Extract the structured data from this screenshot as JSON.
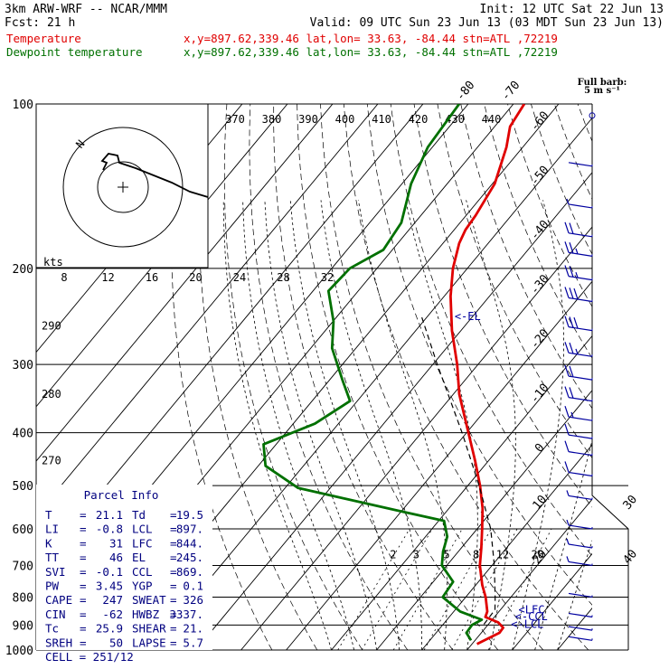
{
  "header": {
    "line1_left": "3km ARW-WRF -- NCAR/MMM",
    "line1_right": "Init: 12 UTC Sat 22 Jun 13",
    "line2_left": "Fcst:   21 h",
    "line2_right": "Valid: 09 UTC Sun 23 Jun 13 (03 MDT Sun 23 Jun 13)",
    "temp_label": "Temperature",
    "temp_info": "x,y=897.62,339.46   lat,lon= 33.63, -84.44   stn=ATL ,72219",
    "dew_label": "Dewpoint temperature",
    "dew_info": "x,y=897.62,339.46   lat,lon= 33.63, -84.44   stn=ATL ,72219"
  },
  "barb_legend": {
    "title": "Full barb:",
    "unit": "5 m s⁻¹"
  },
  "colors": {
    "temperature": "#e00000",
    "dewpoint": "#007000",
    "parcel": "#000080",
    "grid": "#000000"
  },
  "chart_data": {
    "type": "line",
    "pressure_levels": [
      {
        "p": 100,
        "label": "100"
      },
      {
        "p": 200,
        "label": "200"
      },
      {
        "p": 300,
        "label": "300"
      },
      {
        "p": 400,
        "label": "400"
      },
      {
        "p": 500,
        "label": "500"
      },
      {
        "p": 600,
        "label": "600"
      },
      {
        "p": 700,
        "label": "700"
      },
      {
        "p": 800,
        "label": "800"
      },
      {
        "p": 900,
        "label": "900"
      },
      {
        "p": 1000,
        "label": "1000"
      }
    ],
    "temp_isotherm_labels": [
      {
        "t": -80,
        "label": "-80"
      },
      {
        "t": -70,
        "label": "-70"
      },
      {
        "t": -60,
        "label": "-60"
      },
      {
        "t": -50,
        "label": "-50"
      },
      {
        "t": -40,
        "label": "-40"
      },
      {
        "t": -30,
        "label": "-30"
      },
      {
        "t": -20,
        "label": "-20"
      },
      {
        "t": -10,
        "label": "-10"
      },
      {
        "t": 0,
        "label": "0"
      },
      {
        "t": 10,
        "label": "10"
      },
      {
        "t": 20,
        "label": "20"
      },
      {
        "t": 30,
        "label": "30"
      },
      {
        "t": 40,
        "label": "40"
      }
    ],
    "theta_e_labels": [
      "370",
      "380",
      "390",
      "400",
      "410",
      "420",
      "430",
      "440"
    ],
    "theta_labels": [
      {
        "v": "290",
        "p": 255
      },
      {
        "v": "280",
        "p": 340
      },
      {
        "v": "270",
        "p": 450
      }
    ],
    "mixing_ratio_labels": [
      "2",
      "3",
      "5",
      "8",
      "12",
      "20"
    ],
    "hodograph": {
      "units": "kts",
      "ring_labels": [
        "8",
        "12",
        "16",
        "20",
        "24",
        "28",
        "32"
      ],
      "north_label": "N"
    },
    "series": [
      {
        "name": "Temperature",
        "points": [
          {
            "p": 100,
            "t": -67.6
          },
          {
            "p": 110,
            "t": -66.6
          },
          {
            "p": 120,
            "t": -63.6
          },
          {
            "p": 140,
            "t": -59.5
          },
          {
            "p": 160,
            "t": -57.9
          },
          {
            "p": 170,
            "t": -57.5
          },
          {
            "p": 180,
            "t": -56.4
          },
          {
            "p": 200,
            "t": -53.2
          },
          {
            "p": 225,
            "t": -48.6
          },
          {
            "p": 260,
            "t": -42.0
          },
          {
            "p": 300,
            "t": -34.6
          },
          {
            "p": 340,
            "t": -28.7
          },
          {
            "p": 400,
            "t": -19.6
          },
          {
            "p": 450,
            "t": -13.0
          },
          {
            "p": 500,
            "t": -7.3
          },
          {
            "p": 550,
            "t": -2.6
          },
          {
            "p": 600,
            "t": 1.1
          },
          {
            "p": 650,
            "t": 4.4
          },
          {
            "p": 700,
            "t": 7.3
          },
          {
            "p": 760,
            "t": 11.4
          },
          {
            "p": 800,
            "t": 14.4
          },
          {
            "p": 850,
            "t": 17.4
          },
          {
            "p": 870,
            "t": 18.0
          },
          {
            "p": 890,
            "t": 21.8
          },
          {
            "p": 910,
            "t": 23.9
          },
          {
            "p": 930,
            "t": 24.0
          },
          {
            "p": 955,
            "t": 22.4
          },
          {
            "p": 975,
            "t": 21.1
          }
        ]
      },
      {
        "name": "Dewpoint temperature",
        "points": [
          {
            "p": 100,
            "t": -82.0
          },
          {
            "p": 120,
            "t": -81.0
          },
          {
            "p": 140,
            "t": -78.0
          },
          {
            "p": 165,
            "t": -73.0
          },
          {
            "p": 185,
            "t": -72.0
          },
          {
            "p": 200,
            "t": -76.0
          },
          {
            "p": 220,
            "t": -76.6
          },
          {
            "p": 250,
            "t": -69.9
          },
          {
            "p": 280,
            "t": -65.3
          },
          {
            "p": 320,
            "t": -57.2
          },
          {
            "p": 350,
            "t": -51.6
          },
          {
            "p": 385,
            "t": -55.2
          },
          {
            "p": 420,
            "t": -62.8
          },
          {
            "p": 460,
            "t": -58.4
          },
          {
            "p": 505,
            "t": -47.1
          },
          {
            "p": 560,
            "t": -18.7
          },
          {
            "p": 580,
            "t": -8.8
          },
          {
            "p": 620,
            "t": -5.2
          },
          {
            "p": 660,
            "t": -3.4
          },
          {
            "p": 700,
            "t": -1.1
          },
          {
            "p": 750,
            "t": 4.4
          },
          {
            "p": 800,
            "t": 4.9
          },
          {
            "p": 850,
            "t": 11.4
          },
          {
            "p": 880,
            "t": 17.7
          },
          {
            "p": 900,
            "t": 16.5
          },
          {
            "p": 930,
            "t": 16.7
          },
          {
            "p": 960,
            "t": 19.1
          }
        ]
      },
      {
        "name": "Parcel",
        "points": [
          {
            "p": 897,
            "t": 19.0
          },
          {
            "p": 844,
            "t": 18.8
          },
          {
            "p": 800,
            "t": 16.5
          },
          {
            "p": 700,
            "t": 10.5
          },
          {
            "p": 600,
            "t": 3.0
          },
          {
            "p": 500,
            "t": -7.5
          },
          {
            "p": 400,
            "t": -21.0
          },
          {
            "p": 300,
            "t": -39.0
          },
          {
            "p": 245,
            "t": -51.3
          }
        ]
      }
    ],
    "annotations": [
      {
        "text": "<-EL",
        "p": 245,
        "t": -44
      },
      {
        "text": "<LFC",
        "p": 844,
        "t": 24
      },
      {
        "text": "<-CCL",
        "p": 869,
        "t": 24.5
      },
      {
        "text": "<-LCL",
        "p": 897,
        "t": 25
      }
    ],
    "wind_barbs": [
      {
        "p": 105,
        "speed": 0
      },
      {
        "p": 130,
        "speed": 3
      },
      {
        "p": 155,
        "speed": 7
      },
      {
        "p": 175,
        "speed": 20
      },
      {
        "p": 190,
        "speed": 25
      },
      {
        "p": 210,
        "speed": 28
      },
      {
        "p": 230,
        "speed": 32
      },
      {
        "p": 260,
        "speed": 30
      },
      {
        "p": 290,
        "speed": 26
      },
      {
        "p": 320,
        "speed": 24
      },
      {
        "p": 350,
        "speed": 20
      },
      {
        "p": 380,
        "speed": 16
      },
      {
        "p": 410,
        "speed": 13
      },
      {
        "p": 440,
        "speed": 12
      },
      {
        "p": 480,
        "speed": 10
      },
      {
        "p": 530,
        "speed": 8
      },
      {
        "p": 600,
        "speed": 7
      },
      {
        "p": 650,
        "speed": 6
      },
      {
        "p": 700,
        "speed": 5
      },
      {
        "p": 800,
        "speed": 4
      },
      {
        "p": 870,
        "speed": 4
      },
      {
        "p": 920,
        "speed": 3
      },
      {
        "p": 960,
        "speed": 2
      }
    ]
  },
  "parcel_info": {
    "title": "Parcel Info",
    "rows": [
      {
        "l1": "T",
        "v1": "21.1",
        "l2": "Td",
        "v2": "19.5"
      },
      {
        "l1": "LI",
        "v1": "-0.8",
        "l2": "LCL",
        "v2": "897."
      },
      {
        "l1": "K",
        "v1": "31",
        "l2": "LFC",
        "v2": "844."
      },
      {
        "l1": "TT",
        "v1": "46",
        "l2": "EL",
        "v2": "245."
      },
      {
        "l1": "SVI",
        "v1": "-0.1",
        "l2": "CCL",
        "v2": "869."
      },
      {
        "l1": "PW",
        "v1": "3.45",
        "l2": "YGP",
        "v2": "0.1"
      },
      {
        "l1": "CAPE",
        "v1": "247",
        "l2": "SWEAT",
        "v2": "326"
      },
      {
        "l1": "CIN",
        "v1": "-62",
        "l2": "HWBZ",
        "v2": "3337."
      },
      {
        "l1": "Tc",
        "v1": "25.9",
        "l2": "SHEAR",
        "v2": "21."
      },
      {
        "l1": "SREH",
        "v1": "50",
        "l2": "LAPSE",
        "v2": "5.7"
      }
    ],
    "cell": "CELL = 251/12"
  }
}
